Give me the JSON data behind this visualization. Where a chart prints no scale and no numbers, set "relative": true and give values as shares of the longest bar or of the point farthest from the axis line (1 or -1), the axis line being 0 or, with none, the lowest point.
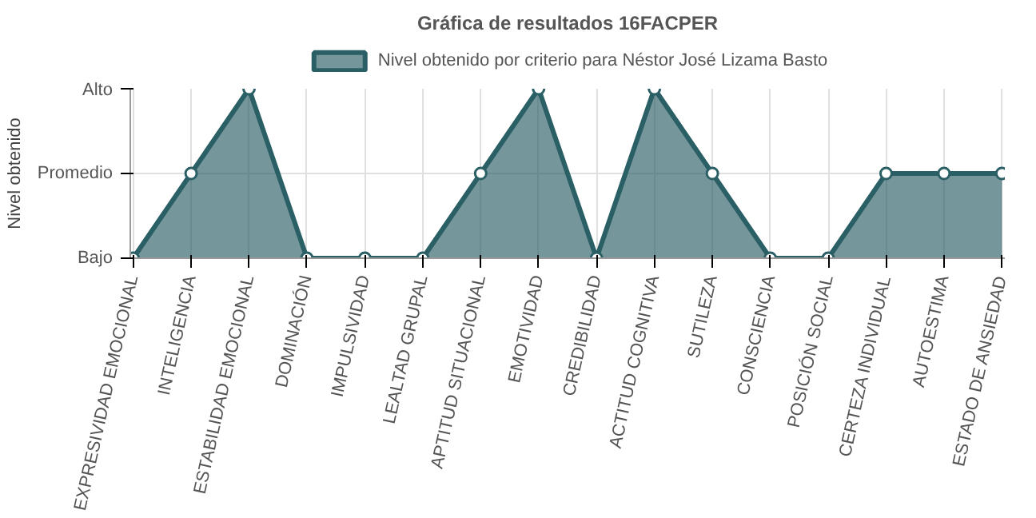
{
  "chart_data": {
    "type": "area",
    "title": "Gráfica de resultados 16FACPER",
    "ylabel": "Nivel obtenido",
    "categories": [
      "EXPRESIVIDAD EMOCIONAL",
      "INTELIGENCIA",
      "ESTABILIDAD EMOCIONAL",
      "DOMINACIÓN",
      "IMPULSIVIDAD",
      "LEALTAD GRUPAL",
      "APTITUD SITUACIONAL",
      "EMOTIVIDAD",
      "CREDIBILIDAD",
      "ACTITUD COGNITIVA",
      "SUTILEZA",
      "CONSCIENCIA",
      "POSICIÓN SOCIAL",
      "CERTEZA INDIVIDUAL",
      "AUTOESTIMA",
      "ESTADO DE ANSIEDAD"
    ],
    "y_categories": [
      "Alto",
      "Promedio",
      "Bajo"
    ],
    "relative": true,
    "series": [
      {
        "name": "Nivel obtenido por criterio para Néstor José Lizama Basto",
        "color": "#2b5f66",
        "values": [
          0,
          0.5,
          1,
          0,
          0,
          0,
          0.5,
          1,
          0,
          1,
          0.5,
          0,
          0,
          0.5,
          0.5,
          0.5
        ]
      }
    ],
    "grid": true,
    "legend": "top",
    "marker": "circle"
  }
}
